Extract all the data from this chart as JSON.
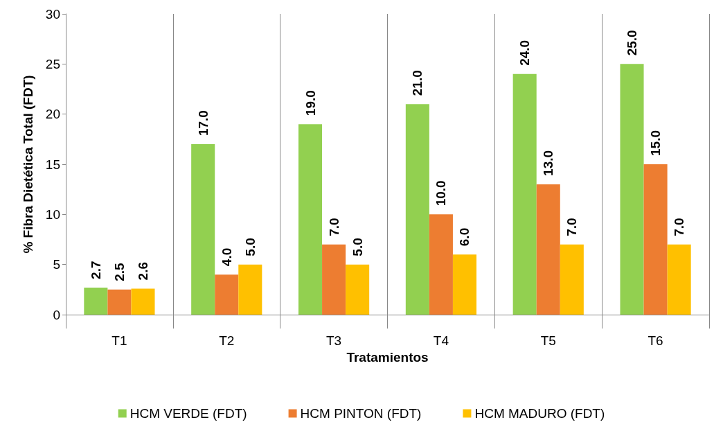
{
  "chart_data": {
    "type": "bar",
    "xlabel": "Tratamientos",
    "ylabel": "% Fibra Dietética Total (FDT)",
    "categories": [
      "T1",
      "T2",
      "T3",
      "T4",
      "T5",
      "T6"
    ],
    "series": [
      {
        "name": "HCM VERDE (FDT)",
        "color": "#92d050",
        "values": [
          2.7,
          17,
          19,
          21,
          24,
          25
        ],
        "value_labels": [
          "2.7",
          "17.0",
          "19.0",
          "21.0",
          "24.0",
          "25.0"
        ]
      },
      {
        "name": "HCM PINTON (FDT)",
        "color": "#ed7d31",
        "values": [
          2.5,
          4,
          7,
          10,
          13,
          15
        ],
        "value_labels": [
          "2.5",
          "4.0",
          "7.0",
          "10.0",
          "13.0",
          "15.0"
        ]
      },
      {
        "name": "HCM MADURO (FDT)",
        "color": "#ffc000",
        "values": [
          2.6,
          5,
          5,
          6,
          7,
          7
        ],
        "value_labels": [
          "2.6",
          "5.0",
          "5.0",
          "6.0",
          "7.0",
          "7.0"
        ]
      }
    ],
    "ylim": [
      0,
      30
    ],
    "yticks": [
      0,
      5,
      10,
      15,
      20,
      25,
      30
    ],
    "grid": "x",
    "legend": "bottom"
  }
}
